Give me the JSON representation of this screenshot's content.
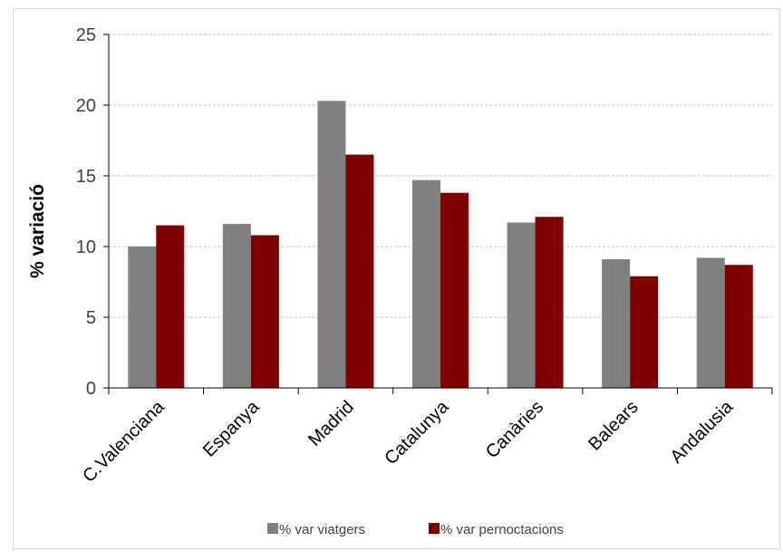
{
  "chart_data": {
    "type": "bar",
    "categories": [
      "C.Valenciana",
      "Espanya",
      "Madrid",
      "Catalunya",
      "Canàries",
      "Balears",
      "Andalusia"
    ],
    "series": [
      {
        "name": "% var viatgers",
        "color": "#808080",
        "values": [
          10.0,
          11.6,
          20.3,
          14.7,
          11.7,
          9.1,
          9.2
        ]
      },
      {
        "name": "% var pernoctacions",
        "color": "#800000",
        "values": [
          11.5,
          10.8,
          16.5,
          13.8,
          12.1,
          7.9,
          8.7
        ]
      }
    ],
    "title": "",
    "xlabel": "",
    "ylabel": "% variació",
    "ylim": [
      0,
      25
    ],
    "yticks": [
      0,
      5,
      10,
      15,
      20,
      25
    ],
    "grid": true,
    "legend_position": "bottom"
  }
}
